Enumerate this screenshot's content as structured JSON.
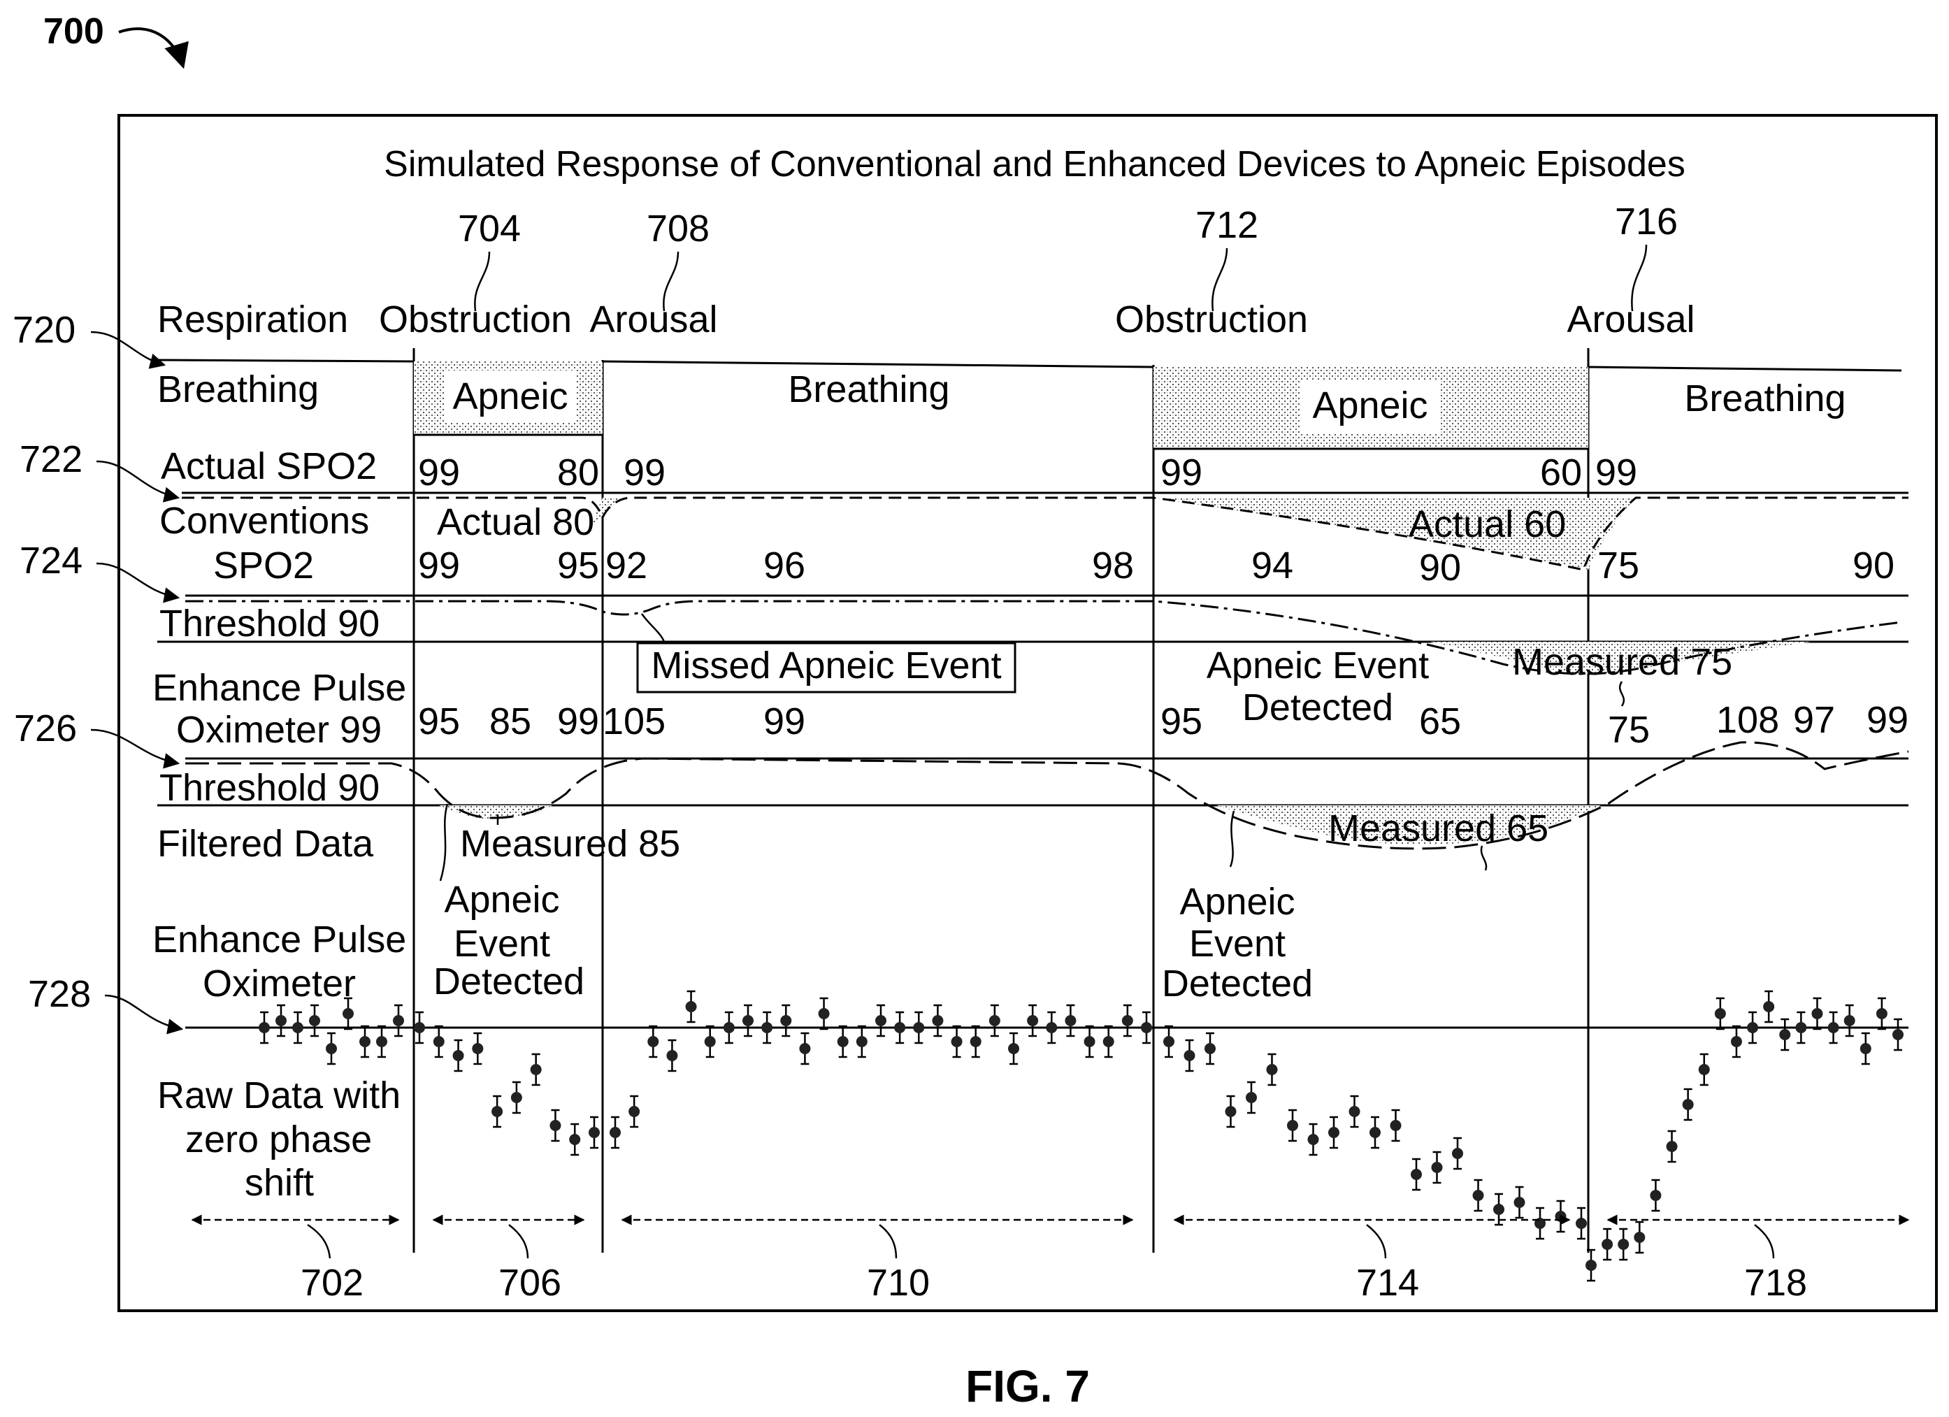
{
  "figure_number": "700",
  "figure_caption": "FIG. 7",
  "title": "Simulated Response of Conventional and Enhanced Devices to Apneic Episodes",
  "events": {
    "e704": {
      "ref": "704",
      "label": "Obstruction"
    },
    "e708": {
      "ref": "708",
      "label": "Arousal"
    },
    "e712": {
      "ref": "712",
      "label": "Obstruction"
    },
    "e716": {
      "ref": "716",
      "label": "Arousal"
    }
  },
  "row_refs": {
    "r720": "720",
    "r722": "722",
    "r724": "724",
    "r726": "726",
    "r728": "728"
  },
  "row_labels": {
    "respiration": "Respiration",
    "breathing": "Breathing",
    "actual_spo2": "Actual SPO2",
    "conventions_1": "Conventions",
    "conventions_2": "SPO2",
    "threshold_a": "Threshold 90",
    "enhance_pulse_1": "Enhance Pulse",
    "enhance_pulse_2": "Oximeter 99",
    "threshold_b": "Threshold 90",
    "filtered": "Filtered Data",
    "enhance_pulse_3": "Enhance Pulse",
    "enhance_pulse_4": "Oximeter",
    "raw_1": "Raw Data with",
    "raw_2": "zero phase",
    "raw_3": "shift"
  },
  "respiration": {
    "apneic_1": "Apneic",
    "breathing_mid": "Breathing",
    "apneic_2": "Apneic",
    "breathing_end": "Breathing"
  },
  "actual_spo2": {
    "v1": "99",
    "v2": "80",
    "v3": "99",
    "v4": "99",
    "v5": "60",
    "v6": "99",
    "shade_1": "Actual 80",
    "shade_2": "Actual 60"
  },
  "conventional_spo2": {
    "v1": "99",
    "v2": "95",
    "v3": "92",
    "v4": "96",
    "v5": "98",
    "v6": "94",
    "v7": "90",
    "v8": "75",
    "v9": "90",
    "missed": "Missed Apneic Event",
    "detected_1": "Apneic Event",
    "detected_2": "Detected",
    "measured": "Measured 75"
  },
  "enhanced": {
    "v1": "95",
    "v2": "85",
    "v3": "99",
    "v4": "105",
    "v5": "99",
    "v6": "95",
    "v7": "65",
    "v8": "75",
    "v9": "108",
    "v10": "97",
    "v11": "99",
    "measured_1": "Measured 85",
    "measured_2": "Measured 65",
    "det_a1": "Apneic",
    "det_a2": "Event",
    "det_a3": "Detected",
    "det_b1": "Apneic",
    "det_b2": "Event",
    "det_b3": "Detected"
  },
  "segments": {
    "s702": "702",
    "s706": "706",
    "s710": "710",
    "s714": "714",
    "s718": "718"
  },
  "raw_data_points": [
    {
      "v": 99,
      "s": 0
    },
    {
      "v": 99.5,
      "s": 0
    },
    {
      "v": 99,
      "s": 0
    },
    {
      "v": 99.5,
      "s": 0
    },
    {
      "v": 97.5,
      "s": 0
    },
    {
      "v": 100,
      "s": 0
    },
    {
      "v": 98,
      "s": 0
    },
    {
      "v": 98,
      "s": 0
    },
    {
      "v": 99.5,
      "s": 0
    },
    {
      "v": 99,
      "s": 1
    },
    {
      "v": 98,
      "s": 1
    },
    {
      "v": 97,
      "s": 1
    },
    {
      "v": 97.5,
      "s": 1
    },
    {
      "v": 93,
      "s": 1
    },
    {
      "v": 94,
      "s": 1
    },
    {
      "v": 96,
      "s": 1
    },
    {
      "v": 92,
      "s": 1
    },
    {
      "v": 91,
      "s": 1
    },
    {
      "v": 91.5,
      "s": 1
    },
    {
      "v": 91.5,
      "s": 2
    },
    {
      "v": 93,
      "s": 2
    },
    {
      "v": 98,
      "s": 2
    },
    {
      "v": 97,
      "s": 2
    },
    {
      "v": 100.5,
      "s": 2
    },
    {
      "v": 98,
      "s": 2
    },
    {
      "v": 99,
      "s": 2
    },
    {
      "v": 99.5,
      "s": 2
    },
    {
      "v": 99,
      "s": 2
    },
    {
      "v": 99.5,
      "s": 2
    },
    {
      "v": 97.5,
      "s": 2
    },
    {
      "v": 100,
      "s": 2
    },
    {
      "v": 98,
      "s": 2
    },
    {
      "v": 98,
      "s": 2
    },
    {
      "v": 99.5,
      "s": 2
    },
    {
      "v": 99,
      "s": 2
    },
    {
      "v": 99,
      "s": 2
    },
    {
      "v": 99.5,
      "s": 2
    },
    {
      "v": 98,
      "s": 2
    },
    {
      "v": 98,
      "s": 2
    },
    {
      "v": 99.5,
      "s": 2
    },
    {
      "v": 97.5,
      "s": 2
    },
    {
      "v": 99.5,
      "s": 2
    },
    {
      "v": 99,
      "s": 2
    },
    {
      "v": 99.5,
      "s": 2
    },
    {
      "v": 98,
      "s": 2
    },
    {
      "v": 98,
      "s": 2
    },
    {
      "v": 99.5,
      "s": 2
    },
    {
      "v": 99,
      "s": 2
    },
    {
      "v": 98,
      "s": 3
    },
    {
      "v": 97,
      "s": 3
    },
    {
      "v": 97.5,
      "s": 3
    },
    {
      "v": 93,
      "s": 3
    },
    {
      "v": 94,
      "s": 3
    },
    {
      "v": 96,
      "s": 3
    },
    {
      "v": 92,
      "s": 3
    },
    {
      "v": 91,
      "s": 3
    },
    {
      "v": 91.5,
      "s": 3
    },
    {
      "v": 93,
      "s": 3
    },
    {
      "v": 91.5,
      "s": 3
    },
    {
      "v": 92,
      "s": 3
    },
    {
      "v": 88.5,
      "s": 3
    },
    {
      "v": 89,
      "s": 3
    },
    {
      "v": 90,
      "s": 3
    },
    {
      "v": 87,
      "s": 3
    },
    {
      "v": 86,
      "s": 3
    },
    {
      "v": 86.5,
      "s": 3
    },
    {
      "v": 85,
      "s": 3
    },
    {
      "v": 85.5,
      "s": 3
    },
    {
      "v": 85,
      "s": 3
    },
    {
      "v": 82,
      "s": 4
    },
    {
      "v": 83.5,
      "s": 4
    },
    {
      "v": 83.5,
      "s": 4
    },
    {
      "v": 84,
      "s": 4
    },
    {
      "v": 87,
      "s": 4
    },
    {
      "v": 90.5,
      "s": 4
    },
    {
      "v": 93.5,
      "s": 4
    },
    {
      "v": 96,
      "s": 4
    },
    {
      "v": 100,
      "s": 4
    },
    {
      "v": 98,
      "s": 4
    },
    {
      "v": 99,
      "s": 4
    },
    {
      "v": 100.5,
      "s": 4
    },
    {
      "v": 98.5,
      "s": 4
    },
    {
      "v": 99,
      "s": 4
    },
    {
      "v": 100,
      "s": 4
    },
    {
      "v": 99,
      "s": 4
    },
    {
      "v": 99.5,
      "s": 4
    },
    {
      "v": 97.5,
      "s": 4
    },
    {
      "v": 100,
      "s": 4
    },
    {
      "v": 98.5,
      "s": 4
    }
  ]
}
